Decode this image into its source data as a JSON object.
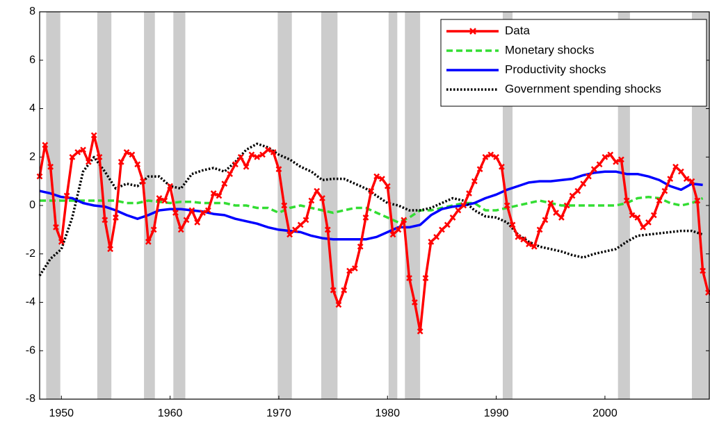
{
  "chart_data": {
    "type": "line",
    "xlim": [
      1948,
      2009.6
    ],
    "ylim": [
      -8,
      8
    ],
    "xticks": [
      1950,
      1960,
      1970,
      1980,
      1990,
      2000
    ],
    "yticks": [
      -8,
      -6,
      -4,
      -2,
      0,
      2,
      4,
      6,
      8
    ],
    "grid": false,
    "legend": "upper right",
    "recession_color": "#cccccc",
    "recessions": [
      [
        1948.6,
        1949.9
      ],
      [
        1953.3,
        1954.6
      ],
      [
        1957.6,
        1958.6
      ],
      [
        1960.3,
        1961.4
      ],
      [
        1969.9,
        1971.2
      ],
      [
        1973.9,
        1975.4
      ],
      [
        1980.1,
        1980.9
      ],
      [
        1981.6,
        1983.0
      ],
      [
        1990.6,
        1991.5
      ],
      [
        2001.2,
        2002.3
      ],
      [
        2008.0,
        2009.6
      ]
    ],
    "series": [
      {
        "name": "Data",
        "color": "#ff0000",
        "dash": "solid",
        "marker": "x",
        "x": [
          1948,
          1948.5,
          1949,
          1949.5,
          1950,
          1950.5,
          1951,
          1951.5,
          1952,
          1952.5,
          1953,
          1953.5,
          1954,
          1954.5,
          1955,
          1955.5,
          1956,
          1956.5,
          1957,
          1957.5,
          1958,
          1958.5,
          1959,
          1959.5,
          1960,
          1960.5,
          1961,
          1961.5,
          1962,
          1962.5,
          1963,
          1963.5,
          1964,
          1964.5,
          1965,
          1965.5,
          1966,
          1966.5,
          1967,
          1967.5,
          1968,
          1968.5,
          1969,
          1969.5,
          1970,
          1970.5,
          1971,
          1971.5,
          1972,
          1972.5,
          1973,
          1973.5,
          1974,
          1974.5,
          1975,
          1975.5,
          1976,
          1976.5,
          1977,
          1977.5,
          1978,
          1978.5,
          1979,
          1979.5,
          1980,
          1980.5,
          1981,
          1981.5,
          1982,
          1982.5,
          1983,
          1983.5,
          1984,
          1984.5,
          1985,
          1985.5,
          1986,
          1986.5,
          1987,
          1987.5,
          1988,
          1988.5,
          1989,
          1989.5,
          1990,
          1990.5,
          1991,
          1991.5,
          1992,
          1992.5,
          1993,
          1993.5,
          1994,
          1994.5,
          1995,
          1995.5,
          1996,
          1996.5,
          1997,
          1997.5,
          1998,
          1998.5,
          1999,
          1999.5,
          2000,
          2000.5,
          2001,
          2001.5,
          2002,
          2002.5,
          2003,
          2003.5,
          2004,
          2004.5,
          2005,
          2005.5,
          2006,
          2006.5,
          2007,
          2007.5,
          2008,
          2008.5,
          2009,
          2009.5
        ],
        "values": [
          1.2,
          2.5,
          1.6,
          -0.9,
          -1.5,
          0.4,
          2.0,
          2.2,
          2.3,
          1.8,
          2.9,
          2.0,
          -0.6,
          -1.8,
          -0.5,
          1.8,
          2.2,
          2.1,
          1.7,
          1.0,
          -1.5,
          -1.0,
          0.3,
          0.2,
          0.8,
          -0.3,
          -1.0,
          -0.6,
          -0.2,
          -0.7,
          -0.3,
          -0.2,
          0.5,
          0.4,
          0.9,
          1.3,
          1.7,
          2.0,
          1.6,
          2.1,
          2.0,
          2.1,
          2.3,
          2.2,
          1.5,
          0.0,
          -1.2,
          -1.0,
          -0.8,
          -0.6,
          0.2,
          0.6,
          0.3,
          -1.0,
          -3.5,
          -4.1,
          -3.5,
          -2.7,
          -2.6,
          -1.7,
          -0.5,
          0.6,
          1.2,
          1.1,
          0.8,
          -1.2,
          -1.0,
          -0.6,
          -3.0,
          -4.0,
          -5.2,
          -3.0,
          -1.5,
          -1.3,
          -1.0,
          -0.8,
          -0.5,
          -0.2,
          0.0,
          0.5,
          1.0,
          1.5,
          2.0,
          2.1,
          2.0,
          1.6,
          0.0,
          -0.8,
          -1.3,
          -1.4,
          -1.6,
          -1.7,
          -1.0,
          -0.6,
          0.1,
          -0.3,
          -0.5,
          0.0,
          0.4,
          0.6,
          0.9,
          1.2,
          1.5,
          1.7,
          2.0,
          2.1,
          1.8,
          1.9,
          0.2,
          -0.4,
          -0.5,
          -0.9,
          -0.7,
          -0.4,
          0.2,
          0.6,
          1.1,
          1.6,
          1.4,
          1.1,
          1.0,
          0.2,
          -2.7,
          -3.6
        ]
      },
      {
        "name": "Monetary shocks",
        "color": "#33dd33",
        "dash": "dashed",
        "x": [
          1948,
          1949,
          1950,
          1951,
          1952,
          1953,
          1954,
          1955,
          1956,
          1957,
          1958,
          1959,
          1960,
          1961,
          1962,
          1963,
          1964,
          1965,
          1966,
          1967,
          1968,
          1969,
          1970,
          1971,
          1972,
          1973,
          1974,
          1975,
          1976,
          1977,
          1978,
          1979,
          1980,
          1981,
          1982,
          1983,
          1984,
          1985,
          1986,
          1987,
          1988,
          1989,
          1990,
          1991,
          1992,
          1993,
          1994,
          1995,
          1996,
          1997,
          1998,
          1999,
          2000,
          2001,
          2002,
          2003,
          2004,
          2005,
          2006,
          2007,
          2008,
          2009
        ],
        "values": [
          0.2,
          0.2,
          0.2,
          0.2,
          0.2,
          0.2,
          0.2,
          0.2,
          0.1,
          0.1,
          0.2,
          0.15,
          0.1,
          0.15,
          0.15,
          0.1,
          0.1,
          0.1,
          0.0,
          0.0,
          -0.1,
          -0.1,
          -0.3,
          -0.1,
          0.0,
          -0.1,
          -0.2,
          -0.3,
          -0.2,
          -0.1,
          -0.1,
          -0.3,
          -0.5,
          -0.7,
          -0.5,
          -0.2,
          -0.2,
          -0.1,
          0.0,
          0.1,
          0.1,
          -0.2,
          -0.2,
          -0.1,
          0.0,
          0.1,
          0.2,
          0.1,
          0.0,
          0.0,
          0.0,
          0.0,
          0.0,
          0.0,
          0.1,
          0.3,
          0.35,
          0.3,
          0.1,
          0.0,
          0.1,
          0.3
        ]
      },
      {
        "name": "Productivity shocks",
        "color": "#0000ff",
        "dash": "solid",
        "x": [
          1948,
          1949,
          1950,
          1951,
          1952,
          1953,
          1954,
          1955,
          1956,
          1957,
          1958,
          1959,
          1960,
          1961,
          1962,
          1963,
          1964,
          1965,
          1966,
          1967,
          1968,
          1969,
          1970,
          1971,
          1972,
          1973,
          1974,
          1975,
          1976,
          1977,
          1978,
          1979,
          1980,
          1981,
          1982,
          1983,
          1984,
          1985,
          1986,
          1987,
          1988,
          1989,
          1990,
          1991,
          1992,
          1993,
          1994,
          1995,
          1996,
          1997,
          1998,
          1999,
          2000,
          2001,
          2002,
          2003,
          2004,
          2005,
          2006,
          2007,
          2008,
          2009
        ],
        "values": [
          0.6,
          0.5,
          0.35,
          0.3,
          0.1,
          0.0,
          -0.05,
          -0.2,
          -0.4,
          -0.55,
          -0.4,
          -0.2,
          -0.15,
          -0.15,
          -0.2,
          -0.25,
          -0.35,
          -0.4,
          -0.55,
          -0.65,
          -0.75,
          -0.9,
          -1.0,
          -1.05,
          -1.1,
          -1.25,
          -1.35,
          -1.4,
          -1.4,
          -1.4,
          -1.4,
          -1.3,
          -1.1,
          -0.9,
          -0.9,
          -0.8,
          -0.4,
          -0.15,
          -0.05,
          0.0,
          0.1,
          0.3,
          0.45,
          0.65,
          0.8,
          0.95,
          1.0,
          1.0,
          1.05,
          1.1,
          1.25,
          1.35,
          1.4,
          1.4,
          1.3,
          1.3,
          1.2,
          1.05,
          0.8,
          0.65,
          0.9,
          0.85
        ]
      },
      {
        "name": "Government spending shocks",
        "color": "#000000",
        "dash": "dotted",
        "x": [
          1948,
          1949,
          1950,
          1951,
          1952,
          1953,
          1954,
          1955,
          1956,
          1957,
          1958,
          1959,
          1960,
          1961,
          1962,
          1963,
          1964,
          1965,
          1966,
          1967,
          1968,
          1969,
          1970,
          1971,
          1972,
          1973,
          1974,
          1975,
          1976,
          1977,
          1978,
          1979,
          1980,
          1981,
          1982,
          1983,
          1984,
          1985,
          1986,
          1987,
          1988,
          1989,
          1990,
          1991,
          1992,
          1993,
          1994,
          1995,
          1996,
          1997,
          1998,
          1999,
          2000,
          2001,
          2002,
          2003,
          2004,
          2005,
          2006,
          2007,
          2008,
          2009
        ],
        "values": [
          -2.9,
          -2.2,
          -1.8,
          -0.5,
          1.4,
          2.0,
          1.4,
          0.7,
          0.9,
          0.8,
          1.2,
          1.2,
          0.8,
          0.7,
          1.3,
          1.45,
          1.55,
          1.4,
          1.8,
          2.3,
          2.55,
          2.4,
          2.1,
          1.9,
          1.6,
          1.4,
          1.05,
          1.1,
          1.1,
          0.9,
          0.7,
          0.4,
          0.1,
          0.0,
          -0.2,
          -0.2,
          -0.1,
          0.1,
          0.3,
          0.2,
          -0.2,
          -0.45,
          -0.5,
          -0.7,
          -1.2,
          -1.5,
          -1.7,
          -1.8,
          -1.9,
          -2.05,
          -2.15,
          -2.0,
          -1.9,
          -1.8,
          -1.5,
          -1.25,
          -1.2,
          -1.15,
          -1.1,
          -1.05,
          -1.05,
          -1.2
        ]
      }
    ]
  }
}
